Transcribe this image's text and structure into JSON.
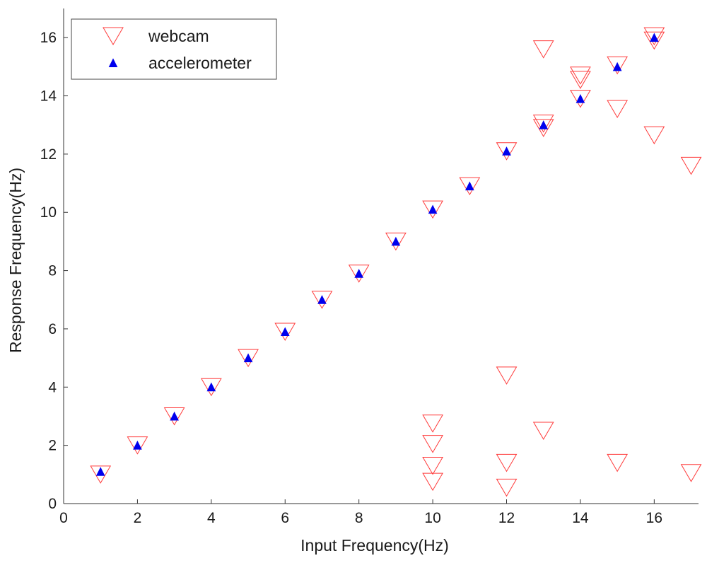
{
  "chart_data": {
    "type": "scatter",
    "xlabel": "Input Frequency(Hz)",
    "ylabel": "Response Frequency(Hz)",
    "xlim": [
      0,
      17.2
    ],
    "ylim": [
      0,
      17
    ],
    "xticks": [
      0,
      2,
      4,
      6,
      8,
      10,
      12,
      14,
      16
    ],
    "yticks": [
      0,
      2,
      4,
      6,
      8,
      10,
      12,
      14,
      16
    ],
    "grid": false,
    "legend_position": "top-left",
    "series": [
      {
        "name": "webcam",
        "marker": "triangle-down-open",
        "color": "#ff3b3b",
        "points": [
          [
            1,
            1.0
          ],
          [
            2,
            2.0
          ],
          [
            3,
            3.0
          ],
          [
            4,
            4.0
          ],
          [
            5,
            5.0
          ],
          [
            6,
            5.9
          ],
          [
            7,
            7.0
          ],
          [
            8,
            7.9
          ],
          [
            9,
            9.0
          ],
          [
            10,
            10.1
          ],
          [
            10,
            2.75
          ],
          [
            10,
            2.05
          ],
          [
            10,
            1.3
          ],
          [
            10,
            0.75
          ],
          [
            11,
            10.9
          ],
          [
            12,
            12.1
          ],
          [
            12,
            4.4
          ],
          [
            12,
            1.4
          ],
          [
            12,
            0.55
          ],
          [
            13,
            15.6
          ],
          [
            13,
            13.05
          ],
          [
            13,
            12.9
          ],
          [
            13,
            2.5
          ],
          [
            14,
            14.7
          ],
          [
            14,
            14.55
          ],
          [
            14,
            13.9
          ],
          [
            15,
            15.05
          ],
          [
            15,
            13.55
          ],
          [
            15,
            1.4
          ],
          [
            16,
            16.05
          ],
          [
            16,
            15.9
          ],
          [
            16,
            12.65
          ],
          [
            17,
            11.6
          ],
          [
            17,
            1.05
          ]
        ]
      },
      {
        "name": "accelerometer",
        "marker": "triangle-up-filled",
        "color": "#0000ee",
        "points": [
          [
            1,
            1.1
          ],
          [
            2,
            2.0
          ],
          [
            3,
            3.0
          ],
          [
            4,
            4.0
          ],
          [
            5,
            5.0
          ],
          [
            6,
            5.9
          ],
          [
            7,
            7.0
          ],
          [
            8,
            7.9
          ],
          [
            9,
            9.0
          ],
          [
            10,
            10.1
          ],
          [
            11,
            10.9
          ],
          [
            12,
            12.1
          ],
          [
            13,
            13.0
          ],
          [
            14,
            13.9
          ],
          [
            15,
            15.0
          ],
          [
            16,
            16.0
          ]
        ]
      }
    ]
  }
}
